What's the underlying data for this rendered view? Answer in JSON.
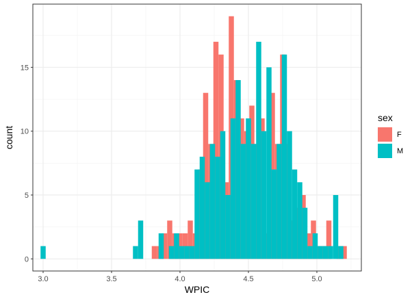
{
  "chart_data": {
    "type": "bar",
    "title": "",
    "xlabel": "WPIC",
    "ylabel": "count",
    "xlim": [
      2.925,
      5.325
    ],
    "ylim": [
      -0.95,
      19.95
    ],
    "x_ticks": [
      3.0,
      3.5,
      4.0,
      4.5,
      5.0
    ],
    "x_tick_labels": [
      "3.0",
      "3.5",
      "4.0",
      "4.5",
      "5.0"
    ],
    "y_ticks": [
      0,
      5,
      10,
      15
    ],
    "y_tick_labels": [
      "0",
      "5",
      "10",
      "15"
    ],
    "grid": true,
    "bin_width": 0.0375,
    "legend": {
      "title": "sex",
      "placement": "right"
    },
    "series": [
      {
        "name": "F",
        "color": "#F8766D",
        "x": [
          3.8125,
          3.85,
          3.8875,
          3.925,
          3.9625,
          4.0,
          4.0375,
          4.075,
          4.1125,
          4.15,
          4.1875,
          4.225,
          4.2625,
          4.3,
          4.3375,
          4.375,
          4.4125,
          4.45,
          4.4875,
          4.525,
          4.5625,
          4.6,
          4.6375,
          4.675,
          4.7125,
          4.75,
          4.7875,
          4.825,
          4.8625,
          4.9,
          4.9375,
          4.975,
          5.0125,
          5.05,
          5.0875,
          5.125,
          5.1625,
          5.2
        ],
        "values": [
          1,
          1,
          2,
          3,
          2,
          2,
          2,
          3,
          2,
          7,
          13,
          9,
          17,
          16,
          6,
          19,
          14,
          11,
          10,
          12,
          9,
          11,
          2,
          13,
          9,
          16,
          9,
          3,
          4,
          5,
          2,
          3,
          1,
          1,
          3,
          0,
          1,
          1
        ]
      },
      {
        "name": "M",
        "color": "#00BFC4",
        "x": [
          3.0,
          3.675,
          3.7125,
          3.8625,
          3.9375,
          3.975,
          4.0125,
          4.05,
          4.0875,
          4.125,
          4.1625,
          4.2,
          4.2375,
          4.275,
          4.3125,
          4.35,
          4.3875,
          4.425,
          4.4625,
          4.5,
          4.5375,
          4.575,
          4.6125,
          4.65,
          4.6875,
          4.725,
          4.7625,
          4.8,
          4.8375,
          4.875,
          4.9125,
          4.95,
          4.9875,
          5.025,
          5.0625,
          5.1,
          5.1375,
          5.175
        ],
        "values": [
          1,
          1,
          3,
          2,
          1,
          2,
          1,
          1,
          1,
          7,
          8,
          6,
          9,
          8,
          10,
          5,
          11,
          14,
          9,
          11,
          9,
          17,
          10,
          15,
          7,
          9,
          16,
          10,
          7,
          6,
          4,
          1,
          2,
          1,
          1,
          1,
          5,
          1
        ]
      }
    ]
  }
}
